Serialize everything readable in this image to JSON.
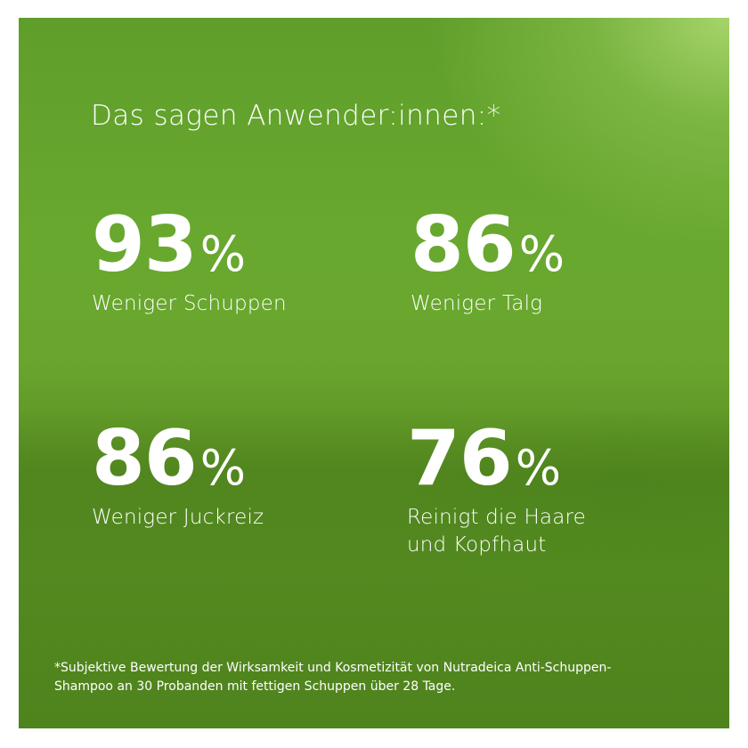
{
  "title": "Das sagen Anwender:innen:*",
  "stats": [
    {
      "value": "93",
      "unit": "%",
      "label_line1": "Weniger Schuppen",
      "label_line2": ""
    },
    {
      "value": "86",
      "unit": "%",
      "label_line1": "Weniger Talg",
      "label_line2": ""
    },
    {
      "value": "86",
      "unit": "%",
      "label_line1": "Weniger Juckreiz",
      "label_line2": ""
    },
    {
      "value": "76",
      "unit": "%",
      "label_line1": "Reinigt die Haare",
      "label_line2": "und Kopfhaut"
    }
  ],
  "footnote": {
    "line1": "*Subjektive Bewertung der Wirksamkeit und Kosmetizität von Nutradeica Anti-Schuppen-",
    "line2": "Shampoo an 30 Probanden mit fettigen Schuppen über 28 Tage."
  },
  "colors": {
    "background": "#68a82f",
    "highlight": "#aad76e",
    "text": "#ffffff"
  }
}
